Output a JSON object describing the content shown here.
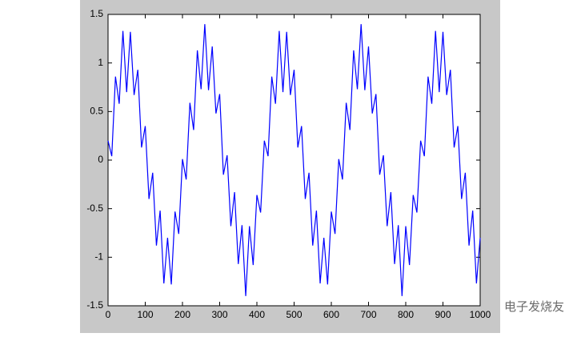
{
  "chart_data": {
    "type": "line",
    "x": [
      0,
      10,
      20,
      30,
      40,
      50,
      60,
      70,
      80,
      90,
      100,
      110,
      120,
      130,
      140,
      150,
      160,
      170,
      180,
      190,
      200,
      210,
      220,
      230,
      240,
      250,
      260,
      270,
      280,
      290,
      300,
      310,
      320,
      330,
      340,
      350,
      360,
      370,
      380,
      390,
      400,
      410,
      420,
      430,
      440,
      450,
      460,
      470,
      480,
      490,
      500,
      510,
      520,
      530,
      540,
      550,
      560,
      570,
      580,
      590,
      600,
      610,
      620,
      630,
      640,
      650,
      660,
      670,
      680,
      690,
      700,
      710,
      720,
      730,
      740,
      750,
      760,
      770,
      780,
      790,
      800,
      810,
      820,
      830,
      840,
      850,
      860,
      870,
      880,
      890,
      900,
      910,
      920,
      930,
      940,
      950,
      960,
      970,
      980,
      990,
      1000
    ],
    "series": [
      {
        "color": "#0000ff",
        "values": [
          0.2,
          0.04,
          0.86,
          0.58,
          1.33,
          0.7,
          1.32,
          0.67,
          0.93,
          0.13,
          0.35,
          -0.4,
          -0.13,
          -0.88,
          -0.52,
          -1.27,
          -0.8,
          -1.28,
          -0.53,
          -0.76,
          0.01,
          -0.2,
          0.59,
          0.31,
          1.13,
          0.73,
          1.4,
          0.72,
          1.17,
          0.48,
          0.68,
          -0.15,
          0.05,
          -0.68,
          -0.33,
          -1.07,
          -0.67,
          -1.4,
          -0.68,
          -1.08,
          -0.36,
          -0.54,
          0.2,
          0.04,
          0.86,
          0.58,
          1.33,
          0.7,
          1.32,
          0.67,
          0.93,
          0.13,
          0.35,
          -0.4,
          -0.13,
          -0.88,
          -0.52,
          -1.27,
          -0.8,
          -1.28,
          -0.53,
          -0.76,
          0.01,
          -0.2,
          0.59,
          0.31,
          1.13,
          0.73,
          1.4,
          0.72,
          1.17,
          0.48,
          0.68,
          -0.15,
          0.05,
          -0.68,
          -0.33,
          -1.07,
          -0.67,
          -1.4,
          -0.68,
          -1.08,
          -0.36,
          -0.54,
          0.2,
          0.04,
          0.86,
          0.58,
          1.33,
          0.7,
          1.32,
          0.67,
          0.93,
          0.13,
          0.35,
          -0.4,
          -0.13,
          -0.88,
          -0.52,
          -1.27,
          -0.8
        ]
      }
    ],
    "xlim": [
      0,
      1000
    ],
    "xticks": [
      0,
      100,
      200,
      300,
      400,
      500,
      600,
      700,
      800,
      900,
      1000
    ],
    "ylim": [
      -1.5,
      1.5
    ],
    "yticks": [
      -1.5,
      -1,
      -0.5,
      0,
      0.5,
      1,
      1.5
    ],
    "watermark": "电子发烧友"
  }
}
